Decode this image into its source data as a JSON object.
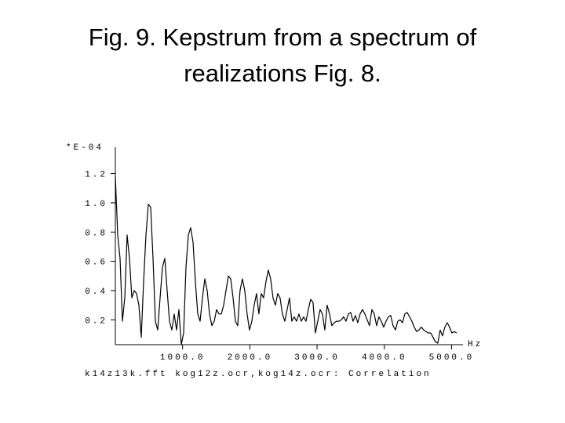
{
  "chart_data": {
    "type": "line",
    "title": [
      "Fig. 9. Kepstrum from a spectrum of",
      "realizations Fig. 8."
    ],
    "y_label": "*E-04",
    "x_label": "Hz",
    "footer": "k14z13k.fft  kog12z.ocr,kog14z.ocr: Correlation",
    "color": "#000000",
    "xlim": [
      0,
      5170
    ],
    "ylim": [
      0.03,
      1.38
    ],
    "xticks": [
      {
        "value": 1000,
        "label": "1000.0"
      },
      {
        "value": 2000,
        "label": "2000.0"
      },
      {
        "value": 3000,
        "label": "3000.0"
      },
      {
        "value": 4000,
        "label": "4000.0"
      },
      {
        "value": 5000,
        "label": "5000.0"
      }
    ],
    "yticks": [
      0.2,
      0.4,
      0.6,
      0.8,
      {
        "value": 1,
        "label": "1.0"
      },
      1.2
    ],
    "x": [
      0,
      35,
      70,
      105,
      140,
      175,
      210,
      245,
      280,
      315,
      350,
      385,
      420,
      455,
      490,
      525,
      560,
      595,
      630,
      665,
      700,
      735,
      770,
      805,
      840,
      875,
      910,
      945,
      980,
      1015,
      1050,
      1085,
      1120,
      1155,
      1190,
      1225,
      1260,
      1295,
      1330,
      1365,
      1400,
      1435,
      1470,
      1505,
      1540,
      1575,
      1610,
      1645,
      1680,
      1715,
      1750,
      1785,
      1820,
      1855,
      1890,
      1925,
      1960,
      1995,
      2030,
      2065,
      2100,
      2135,
      2170,
      2205,
      2240,
      2275,
      2310,
      2345,
      2380,
      2415,
      2450,
      2485,
      2520,
      2555,
      2590,
      2625,
      2660,
      2695,
      2730,
      2765,
      2800,
      2835,
      2870,
      2905,
      2940,
      2975,
      3010,
      3045,
      3080,
      3115,
      3150,
      3185,
      3220,
      3255,
      3290,
      3325,
      3360,
      3395,
      3430,
      3465,
      3500,
      3535,
      3570,
      3605,
      3640,
      3675,
      3710,
      3745,
      3780,
      3815,
      3850,
      3885,
      3920,
      3955,
      3990,
      4025,
      4060,
      4095,
      4130,
      4165,
      4200,
      4235,
      4270,
      4305,
      4340,
      4375,
      4410,
      4445,
      4480,
      4515,
      4550,
      4585,
      4620,
      4655,
      4690,
      4725,
      4760,
      4795,
      4830,
      4865,
      4900,
      4935,
      4970,
      5005,
      5040,
      5075
    ],
    "values": [
      1.18,
      0.78,
      0.62,
      0.19,
      0.35,
      0.78,
      0.62,
      0.35,
      0.4,
      0.38,
      0.3,
      0.08,
      0.46,
      0.78,
      0.99,
      0.97,
      0.62,
      0.19,
      0.13,
      0.35,
      0.56,
      0.62,
      0.4,
      0.19,
      0.13,
      0.24,
      0.13,
      0.27,
      0.03,
      0.11,
      0.56,
      0.78,
      0.83,
      0.73,
      0.46,
      0.24,
      0.19,
      0.35,
      0.48,
      0.4,
      0.24,
      0.16,
      0.19,
      0.27,
      0.24,
      0.24,
      0.3,
      0.4,
      0.5,
      0.48,
      0.35,
      0.19,
      0.16,
      0.4,
      0.48,
      0.4,
      0.24,
      0.13,
      0.19,
      0.3,
      0.38,
      0.24,
      0.38,
      0.35,
      0.46,
      0.54,
      0.48,
      0.35,
      0.3,
      0.38,
      0.35,
      0.24,
      0.19,
      0.27,
      0.35,
      0.19,
      0.22,
      0.19,
      0.24,
      0.19,
      0.22,
      0.19,
      0.27,
      0.34,
      0.32,
      0.11,
      0.19,
      0.27,
      0.24,
      0.13,
      0.3,
      0.24,
      0.16,
      0.18,
      0.19,
      0.19,
      0.2,
      0.22,
      0.19,
      0.24,
      0.25,
      0.19,
      0.23,
      0.18,
      0.24,
      0.27,
      0.24,
      0.2,
      0.16,
      0.27,
      0.24,
      0.16,
      0.22,
      0.19,
      0.15,
      0.19,
      0.22,
      0.23,
      0.16,
      0.13,
      0.19,
      0.2,
      0.18,
      0.24,
      0.25,
      0.22,
      0.19,
      0.15,
      0.12,
      0.13,
      0.15,
      0.13,
      0.12,
      0.11,
      0.11,
      0.08,
      0.05,
      0.04,
      0.13,
      0.09,
      0.15,
      0.18,
      0.15,
      0.11,
      0.12,
      0.11
    ]
  }
}
